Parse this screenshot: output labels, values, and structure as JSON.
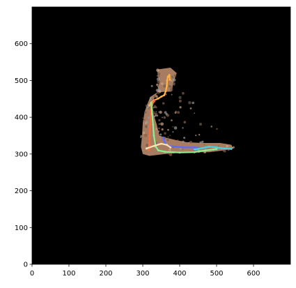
{
  "chart_data": {
    "type": "line",
    "title": "",
    "xlabel": "",
    "ylabel": "",
    "xlim": [
      0,
      700
    ],
    "ylim": [
      0,
      700
    ],
    "x_ticks": [
      0,
      100,
      200,
      300,
      400,
      500,
      600
    ],
    "y_ticks": [
      0,
      100,
      200,
      300,
      400,
      500,
      600
    ],
    "x_tick_labels": [
      "0",
      "100",
      "200",
      "300",
      "400",
      "500",
      "600"
    ],
    "y_tick_labels": [
      "0",
      "100",
      "200",
      "300",
      "400",
      "500",
      "600"
    ],
    "grid": false,
    "background_color": "#000000",
    "map_region": {
      "colors": [
        "#b98a6a",
        "#8a6048",
        "#c9a48a",
        "#6a5a4a",
        "#9a9a9a"
      ],
      "outline": [
        [
          340,
          530
        ],
        [
          375,
          535
        ],
        [
          392,
          520
        ],
        [
          383,
          495
        ],
        [
          378,
          470
        ],
        [
          340,
          468
        ],
        [
          320,
          455
        ],
        [
          312,
          435
        ],
        [
          305,
          415
        ],
        [
          300,
          385
        ],
        [
          298,
          350
        ],
        [
          295,
          320
        ],
        [
          300,
          300
        ],
        [
          318,
          295
        ],
        [
          360,
          300
        ],
        [
          420,
          305
        ],
        [
          480,
          305
        ],
        [
          520,
          310
        ],
        [
          545,
          315
        ],
        [
          540,
          325
        ],
        [
          510,
          330
        ],
        [
          460,
          330
        ],
        [
          420,
          332
        ],
        [
          390,
          338
        ],
        [
          360,
          345
        ],
        [
          345,
          350
        ],
        [
          338,
          380
        ],
        [
          330,
          405
        ],
        [
          325,
          440
        ],
        [
          338,
          465
        ],
        [
          345,
          495
        ],
        [
          340,
          520
        ]
      ]
    },
    "series": [
      {
        "color": "#ffb347",
        "x": [
          318,
          322,
          330,
          342,
          350,
          358,
          362,
          365,
          366,
          368,
          372,
          373
        ],
        "y": [
          432,
          438,
          446,
          451,
          456,
          460,
          470,
          485,
          500,
          510,
          515,
          502
        ]
      },
      {
        "color": "#ff6a3d",
        "x": [
          316,
          318,
          320,
          322,
          328,
          332
        ],
        "y": [
          310,
          340,
          380,
          420,
          440,
          447
        ]
      },
      {
        "color": "#90ee90",
        "x": [
          323,
          325,
          328,
          330,
          335,
          342,
          360,
          400,
          440,
          470,
          490,
          500
        ],
        "y": [
          440,
          410,
          380,
          350,
          320,
          310,
          306,
          304,
          305,
          310,
          312,
          314
        ]
      },
      {
        "color": "#5b6cff",
        "x": [
          355,
          360,
          370,
          390,
          410,
          440,
          460
        ],
        "y": [
          345,
          330,
          322,
          320,
          318,
          318,
          316
        ]
      },
      {
        "color": "#4dd0e1",
        "x": [
          440,
          460,
          470,
          480,
          500,
          520,
          540
        ],
        "y": [
          312,
          316,
          318,
          320,
          318,
          315,
          314
        ]
      },
      {
        "color": "#ffe0b0",
        "x": [
          310,
          330,
          350,
          365,
          375
        ],
        "y": [
          315,
          322,
          328,
          325,
          318
        ]
      }
    ]
  }
}
